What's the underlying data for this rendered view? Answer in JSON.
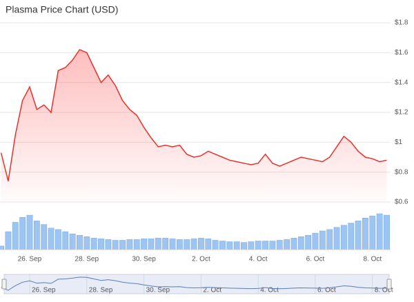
{
  "chart_data": {
    "type": "line",
    "title": "Plasma Price Chart (USD)",
    "categories": [
      null,
      null,
      null,
      null,
      "26. Sep",
      null,
      null,
      null,
      null,
      null,
      null,
      null,
      "28. Sep",
      null,
      null,
      null,
      null,
      null,
      null,
      null,
      "30. Sep",
      null,
      null,
      null,
      null,
      null,
      null,
      null,
      "2. Oct",
      null,
      null,
      null,
      null,
      null,
      null,
      null,
      "4. Oct",
      null,
      null,
      null,
      null,
      null,
      null,
      null,
      "6. Oct",
      null,
      null,
      null,
      null,
      null,
      null,
      null,
      "8. Oct",
      null,
      null
    ],
    "values": [
      0.93,
      0.74,
      1.05,
      1.28,
      1.37,
      1.22,
      1.25,
      1.2,
      1.48,
      1.5,
      1.55,
      1.62,
      1.6,
      1.5,
      1.4,
      1.45,
      1.38,
      1.28,
      1.22,
      1.18,
      1.1,
      1.03,
      0.97,
      0.98,
      0.97,
      0.98,
      0.92,
      0.9,
      0.91,
      0.94,
      0.92,
      0.9,
      0.88,
      0.87,
      0.86,
      0.85,
      0.86,
      0.92,
      0.86,
      0.84,
      0.86,
      0.88,
      0.9,
      0.89,
      0.88,
      0.87,
      0.9,
      0.97,
      1.04,
      1.0,
      0.94,
      0.9,
      0.89,
      0.87,
      0.88
    ],
    "volume": [
      5,
      25,
      38,
      45,
      48,
      40,
      35,
      30,
      28,
      25,
      22,
      20,
      18,
      16,
      15,
      14,
      13,
      13,
      14,
      14,
      15,
      15,
      16,
      16,
      15,
      14,
      14,
      15,
      16,
      15,
      13,
      12,
      11,
      11,
      10,
      11,
      12,
      12,
      12,
      13,
      14,
      16,
      18,
      20,
      23,
      26,
      28,
      31,
      34,
      37,
      40,
      44,
      47,
      50,
      48
    ],
    "color": "#e8312a",
    "volume_color": "#9ec5f2",
    "ylim": [
      0.6,
      1.8
    ],
    "yticks": [
      {
        "value": 0.6,
        "label": "$0.6"
      },
      {
        "value": 0.8,
        "label": "$0.8"
      },
      {
        "value": 1,
        "label": "$1"
      },
      {
        "value": 1.2,
        "label": "$1.2"
      },
      {
        "value": 1.4,
        "label": "$1.4"
      },
      {
        "value": 1.6,
        "label": "$1.6"
      },
      {
        "value": 1.8,
        "label": "$1.8"
      }
    ],
    "grid": true
  }
}
